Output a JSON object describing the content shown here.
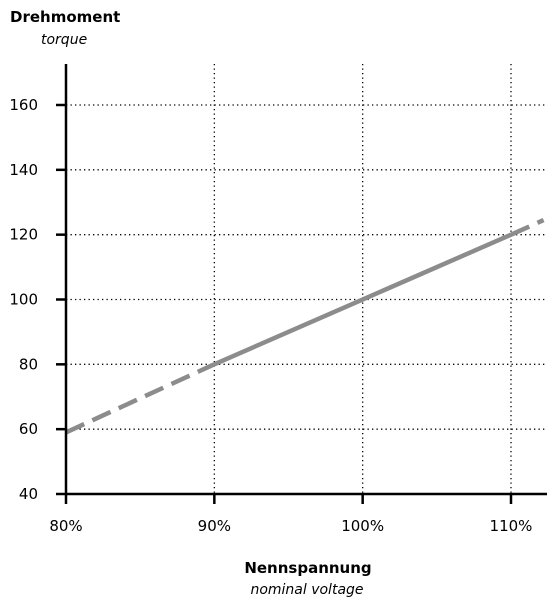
{
  "chart_data": {
    "type": "line",
    "ylabel": "Drehmoment",
    "ylabel_sub": "torque",
    "xlabel": "Nennspannung",
    "xlabel_sub": "nominal voltage",
    "x_ticks": [
      {
        "value": 80,
        "label": "80%"
      },
      {
        "value": 90,
        "label": "90%"
      },
      {
        "value": 100,
        "label": "100%"
      },
      {
        "value": 110,
        "label": "110%"
      }
    ],
    "y_ticks": [
      {
        "value": 40,
        "label": "40"
      },
      {
        "value": 60,
        "label": "60"
      },
      {
        "value": 80,
        "label": "80"
      },
      {
        "value": 100,
        "label": "100"
      },
      {
        "value": 120,
        "label": "120"
      },
      {
        "value": 140,
        "label": "140"
      },
      {
        "value": 160,
        "label": "160"
      }
    ],
    "xlim": [
      80,
      112.2
    ],
    "ylim": [
      40,
      172
    ],
    "grid": true,
    "series": [
      {
        "color": "#8c8c8c",
        "segments": [
          {
            "style": "dashed",
            "points": [
              [
                80,
                59
              ],
              [
                90,
                80
              ]
            ]
          },
          {
            "style": "solid",
            "points": [
              [
                90,
                80
              ],
              [
                110,
                120
              ]
            ]
          },
          {
            "style": "dashed",
            "points": [
              [
                110,
                120
              ],
              [
                112.2,
                124.5
              ]
            ]
          }
        ]
      }
    ]
  }
}
